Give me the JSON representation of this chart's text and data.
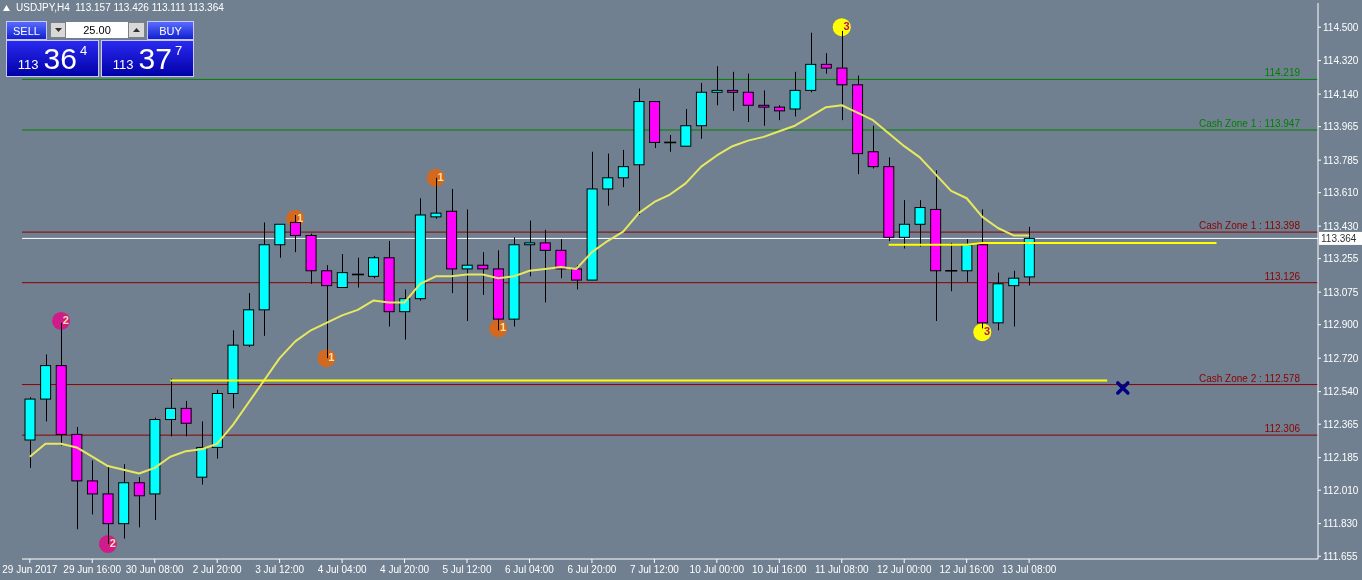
{
  "chart_data": {
    "type": "candlestick",
    "title": "USDJPY,H4  113.157 113.426 113.111 113.364",
    "categories": [
      "29 Jun 2017",
      null,
      null,
      null,
      "29 Jun 16:00",
      null,
      null,
      null,
      "30 Jun 08:00",
      null,
      null,
      null,
      "2 Jul 20:00",
      null,
      null,
      null,
      "3 Jul 12:00",
      null,
      null,
      null,
      "4 Jul 04:00",
      null,
      null,
      null,
      "4 Jul 20:00",
      null,
      null,
      null,
      "5 Jul 12:00",
      null,
      null,
      null,
      "6 Jul 04:00",
      null,
      null,
      null,
      "6 Jul 20:00",
      null,
      null,
      null,
      "7 Jul 12:00",
      null,
      null,
      null,
      "10 Jul 00:00",
      null,
      null,
      null,
      "10 Jul 16:00",
      null,
      null,
      null,
      "11 Jul 08:00",
      null,
      null,
      null,
      "12 Jul 00:00",
      null,
      null,
      null,
      "12 Jul 16:00",
      null,
      null,
      null,
      "13 Jul 08:00",
      null,
      null,
      null,
      null,
      null,
      null,
      null,
      null,
      null,
      null,
      null,
      null,
      null,
      null,
      null,
      null,
      null,
      null
    ],
    "ohlc": [
      [
        112.28,
        112.51,
        112.13,
        112.5
      ],
      [
        112.5,
        112.74,
        112.38,
        112.68
      ],
      [
        112.68,
        112.91,
        112.25,
        112.31
      ],
      [
        112.31,
        112.35,
        111.8,
        112.06
      ],
      [
        112.06,
        112.17,
        111.88,
        111.99
      ],
      [
        111.99,
        112.14,
        111.72,
        111.83
      ],
      [
        111.83,
        112.15,
        111.75,
        112.05
      ],
      [
        112.05,
        112.08,
        111.81,
        111.98
      ],
      [
        111.99,
        112.4,
        111.85,
        112.39
      ],
      [
        112.39,
        112.61,
        112.3,
        112.45
      ],
      [
        112.45,
        112.49,
        112.3,
        112.37
      ],
      [
        112.08,
        112.38,
        112.04,
        112.24
      ],
      [
        112.24,
        112.55,
        112.18,
        112.53
      ],
      [
        112.53,
        112.87,
        112.45,
        112.79
      ],
      [
        112.79,
        113.07,
        112.78,
        112.98
      ],
      [
        112.98,
        113.45,
        112.84,
        113.33
      ],
      [
        113.33,
        113.44,
        113.26,
        113.44
      ],
      [
        113.45,
        113.49,
        113.29,
        113.38
      ],
      [
        113.38,
        113.39,
        113.12,
        113.19
      ],
      [
        113.19,
        113.22,
        112.72,
        113.11
      ],
      [
        113.1,
        113.28,
        113.1,
        113.18
      ],
      [
        113.17,
        113.26,
        113.1,
        113.17
      ],
      [
        113.16,
        113.27,
        113.15,
        113.26
      ],
      [
        113.26,
        113.35,
        112.89,
        112.97
      ],
      [
        112.97,
        113.09,
        112.82,
        113.04
      ],
      [
        113.04,
        113.58,
        113.03,
        113.49
      ],
      [
        113.48,
        113.69,
        113.47,
        113.5
      ],
      [
        113.51,
        113.63,
        113.07,
        113.2
      ],
      [
        113.2,
        113.52,
        112.92,
        113.22
      ],
      [
        113.22,
        113.29,
        113.06,
        113.2
      ],
      [
        113.2,
        113.3,
        112.87,
        112.93
      ],
      [
        112.93,
        113.37,
        112.89,
        113.33
      ],
      [
        113.33,
        113.46,
        113.16,
        113.34
      ],
      [
        113.34,
        113.41,
        113.02,
        113.3
      ],
      [
        113.3,
        113.36,
        113.15,
        113.2
      ],
      [
        113.2,
        113.22,
        113.09,
        113.14
      ],
      [
        113.14,
        113.83,
        113.14,
        113.63
      ],
      [
        113.63,
        113.82,
        113.54,
        113.69
      ],
      [
        113.69,
        113.84,
        113.64,
        113.75
      ],
      [
        113.76,
        114.17,
        113.49,
        114.1
      ],
      [
        114.1,
        114.1,
        113.85,
        113.88
      ],
      [
        113.88,
        113.92,
        113.83,
        113.88
      ],
      [
        113.86,
        114.06,
        113.86,
        113.97
      ],
      [
        113.97,
        114.2,
        113.9,
        114.15
      ],
      [
        114.15,
        114.29,
        114.08,
        114.16
      ],
      [
        114.16,
        114.26,
        114.05,
        114.15
      ],
      [
        114.15,
        114.25,
        113.99,
        114.08
      ],
      [
        114.08,
        114.16,
        113.97,
        114.07
      ],
      [
        114.07,
        114.08,
        114.0,
        114.05
      ],
      [
        114.06,
        114.26,
        114.02,
        114.16
      ],
      [
        114.16,
        114.47,
        114.15,
        114.3
      ],
      [
        114.3,
        114.36,
        114.25,
        114.28
      ],
      [
        114.28,
        114.48,
        114.0,
        114.19
      ],
      [
        114.19,
        114.24,
        113.71,
        113.82
      ],
      [
        113.83,
        113.97,
        113.74,
        113.75
      ],
      [
        113.75,
        113.8,
        113.35,
        113.37
      ],
      [
        113.37,
        113.57,
        113.31,
        113.44
      ],
      [
        113.44,
        113.57,
        113.32,
        113.53
      ],
      [
        113.52,
        113.73,
        112.92,
        113.19
      ],
      [
        113.19,
        113.34,
        113.08,
        113.19
      ],
      [
        113.19,
        113.36,
        113.13,
        113.33
      ],
      [
        113.33,
        113.52,
        112.88,
        112.91
      ],
      [
        112.91,
        113.18,
        112.87,
        113.12
      ],
      [
        113.11,
        113.19,
        112.89,
        113.15
      ],
      [
        113.157,
        113.426,
        113.111,
        113.364
      ],
      null,
      null,
      null,
      null,
      null,
      null,
      null,
      null,
      null,
      null,
      null,
      null,
      null,
      null,
      null,
      null,
      null,
      null
    ],
    "colors": [
      "#00ffff",
      "#00ffff",
      "#ff00ff",
      "#ff00ff",
      "#ff00ff",
      "#ff00ff",
      "#00ffff",
      "#ff00ff",
      "#00ffff",
      "#00ffff",
      "#ff00ff",
      "#00ffff",
      "#00ffff",
      "#00ffff",
      "#00ffff",
      "#00ffff",
      "#00ffff",
      "#ff00ff",
      "#ff00ff",
      "#ff00ff",
      "#00ffff",
      "#000000",
      "#00ffff",
      "#ff00ff",
      "#00ffff",
      "#00ffff",
      "#00ffff",
      "#ff00ff",
      "#00ffff",
      "#ff00ff",
      "#ff00ff",
      "#00ffff",
      "#00ffff",
      "#ff00ff",
      "#ff00ff",
      "#ff00ff",
      "#00ffff",
      "#00ffff",
      "#00ffff",
      "#00ffff",
      "#ff00ff",
      "#000000",
      "#00ffff",
      "#00ffff",
      "#00ffff",
      "#ff00ff",
      "#ff00ff",
      "#ff00ff",
      "#ff00ff",
      "#00ffff",
      "#00ffff",
      "#ff00ff",
      "#ff00ff",
      "#ff00ff",
      "#ff00ff",
      "#ff00ff",
      "#00ffff",
      "#00ffff",
      "#ff00ff",
      "#000000",
      "#00ffff",
      "#ff00ff",
      "#00ffff",
      "#00ffff",
      "#00ffff",
      null,
      null,
      null,
      null,
      null,
      null,
      null,
      null,
      null,
      null,
      null,
      null,
      null,
      null,
      null,
      null,
      null,
      null
    ],
    "series": [
      {
        "type": "line",
        "color": "#e8e860",
        "values": [
          112.19,
          112.26,
          112.26,
          112.24,
          112.19,
          112.14,
          112.12,
          112.1,
          112.13,
          112.19,
          112.22,
          112.23,
          112.26,
          112.36,
          112.48,
          112.6,
          112.72,
          112.81,
          112.87,
          112.91,
          112.95,
          112.98,
          113.03,
          113.02,
          113.02,
          113.12,
          113.16,
          113.16,
          113.17,
          113.17,
          113.15,
          113.16,
          113.19,
          113.2,
          113.21,
          113.2,
          113.29,
          113.35,
          113.4,
          113.5,
          113.56,
          113.6,
          113.66,
          113.75,
          113.81,
          113.86,
          113.89,
          113.91,
          113.94,
          113.97,
          114.02,
          114.07,
          114.08,
          114.04,
          114.0,
          113.93,
          113.86,
          113.8,
          113.71,
          113.62,
          113.58,
          113.48,
          113.42,
          113.38,
          113.38,
          null,
          null,
          null,
          null,
          null,
          null,
          null,
          null,
          null,
          null,
          null,
          null,
          null,
          null,
          null,
          null,
          null,
          null
        ]
      },
      {
        "type": "line",
        "color": "#ffff00",
        "values": [
          null,
          null,
          null,
          null,
          null,
          null,
          null,
          null,
          null,
          112.6,
          112.6,
          112.6,
          112.6,
          112.6,
          112.6,
          112.6,
          112.6,
          112.6,
          112.6,
          112.6,
          112.6,
          112.6,
          112.6,
          112.6,
          112.6,
          112.6,
          112.6,
          112.6,
          112.6,
          112.6,
          112.6,
          112.6,
          112.6,
          112.6,
          112.6,
          112.6,
          112.6,
          112.6,
          112.6,
          112.6,
          112.6,
          112.6,
          112.6,
          112.6,
          112.6,
          112.6,
          112.6,
          112.6,
          112.6,
          112.6,
          112.6,
          112.6,
          112.6,
          112.6,
          112.6,
          112.6,
          112.6,
          112.6,
          112.6,
          112.6,
          112.6,
          112.6,
          112.6,
          112.6,
          112.6,
          112.6,
          112.6,
          112.6,
          112.6,
          112.6,
          null,
          null,
          null,
          null,
          null,
          null,
          null,
          null,
          null,
          null,
          null,
          null,
          null
        ]
      },
      {
        "type": "line",
        "color": "#ffff00",
        "values": [
          null,
          null,
          null,
          null,
          null,
          null,
          null,
          null,
          null,
          null,
          null,
          null,
          null,
          null,
          null,
          null,
          null,
          null,
          null,
          null,
          null,
          null,
          null,
          null,
          null,
          null,
          null,
          null,
          null,
          null,
          null,
          null,
          null,
          null,
          null,
          null,
          null,
          null,
          null,
          null,
          null,
          null,
          null,
          null,
          null,
          null,
          null,
          null,
          null,
          null,
          null,
          null,
          null,
          null,
          null,
          113.33,
          113.33,
          113.33,
          113.33,
          113.33,
          113.33,
          113.34,
          113.34,
          113.34,
          113.34,
          113.34,
          113.34,
          113.34,
          113.34,
          113.34,
          113.34,
          113.34,
          113.34,
          113.34,
          113.34,
          113.34,
          113.34,
          null,
          null,
          null,
          null,
          null,
          null
        ]
      },
      {
        "type": "scatter",
        "name": "2",
        "color": "#d01c8b",
        "marker": "circle",
        "values": [
          null,
          null,
          112.92,
          null,
          null,
          111.72,
          null,
          null,
          null,
          null,
          null,
          null,
          null,
          null,
          null,
          null,
          null,
          null,
          null,
          null,
          null,
          null,
          null,
          null,
          null,
          null,
          null,
          null,
          null,
          null,
          null,
          null,
          null,
          null,
          null,
          null,
          null,
          null,
          null,
          null,
          null,
          null,
          null,
          null,
          null,
          null,
          null,
          null,
          null,
          null,
          null,
          null,
          null,
          null,
          null,
          null,
          null,
          null,
          null,
          null,
          null,
          null,
          null,
          null,
          null,
          null,
          null,
          null,
          null,
          null,
          null,
          null,
          null,
          null,
          null,
          null,
          null,
          null,
          null,
          null,
          null,
          null,
          null
        ]
      },
      {
        "type": "scatter",
        "name": "1",
        "color": "#d2691e",
        "marker": "circle",
        "values": [
          null,
          null,
          null,
          null,
          null,
          null,
          null,
          null,
          null,
          null,
          null,
          null,
          null,
          null,
          null,
          null,
          null,
          113.47,
          null,
          112.72,
          null,
          null,
          null,
          null,
          null,
          null,
          113.69,
          null,
          null,
          null,
          112.88,
          null,
          null,
          null,
          null,
          null,
          null,
          null,
          null,
          null,
          null,
          null,
          null,
          null,
          null,
          null,
          null,
          null,
          null,
          null,
          null,
          null,
          null,
          null,
          null,
          null,
          null,
          null,
          null,
          null,
          null,
          null,
          null,
          null,
          null,
          null,
          null,
          null,
          null,
          null,
          null,
          null,
          null,
          null,
          null,
          null,
          null,
          null,
          null,
          null,
          null,
          null,
          null
        ]
      },
      {
        "type": "scatter",
        "name": "3",
        "color": "#ffff00",
        "marker": "circle",
        "values": [
          null,
          null,
          null,
          null,
          null,
          null,
          null,
          null,
          null,
          null,
          null,
          null,
          null,
          null,
          null,
          null,
          null,
          null,
          null,
          null,
          null,
          null,
          null,
          null,
          null,
          null,
          null,
          null,
          null,
          null,
          null,
          null,
          null,
          null,
          null,
          null,
          null,
          null,
          null,
          null,
          null,
          null,
          null,
          null,
          null,
          null,
          null,
          null,
          null,
          null,
          null,
          null,
          114.5,
          null,
          null,
          null,
          null,
          null,
          null,
          null,
          null,
          112.86,
          null,
          null,
          null,
          null,
          null,
          null,
          null,
          null,
          null,
          null,
          null,
          null,
          null,
          null,
          null,
          null,
          null,
          null,
          null,
          null,
          null
        ]
      },
      {
        "type": "scatter",
        "color": "#000080",
        "marker": "cross",
        "values": [
          null,
          null,
          null,
          null,
          null,
          null,
          null,
          null,
          null,
          null,
          null,
          null,
          null,
          null,
          null,
          null,
          null,
          null,
          null,
          null,
          null,
          null,
          null,
          null,
          null,
          null,
          null,
          null,
          null,
          null,
          null,
          null,
          null,
          null,
          null,
          null,
          null,
          null,
          null,
          null,
          null,
          null,
          null,
          null,
          null,
          null,
          null,
          null,
          null,
          null,
          null,
          null,
          null,
          null,
          null,
          null,
          null,
          null,
          null,
          null,
          null,
          null,
          null,
          null,
          null,
          null,
          null,
          null,
          null,
          null,
          112.56,
          null,
          null,
          null,
          null,
          null,
          null,
          null,
          null,
          null,
          null,
          null,
          null
        ]
      }
    ],
    "ylim": [
      111.64,
      114.63
    ],
    "yticks": [
      {
        "value": 114.5,
        "label": "114.500"
      },
      {
        "value": 114.32,
        "label": "114.320"
      },
      {
        "value": 114.14,
        "label": "114.140"
      },
      {
        "value": 113.965,
        "label": "113.965"
      },
      {
        "value": 113.785,
        "label": "113.785"
      },
      {
        "value": 113.61,
        "label": "113.610"
      },
      {
        "value": 113.43,
        "label": "113.430"
      },
      {
        "value": 113.255,
        "label": "113.255"
      },
      {
        "value": 113.075,
        "label": "113.075"
      },
      {
        "value": 112.9,
        "label": "112.900"
      },
      {
        "value": 112.72,
        "label": "112.720"
      },
      {
        "value": 112.54,
        "label": "112.540"
      },
      {
        "value": 112.365,
        "label": "112.365"
      },
      {
        "value": 112.185,
        "label": "112.185"
      },
      {
        "value": 112.01,
        "label": "112.010"
      },
      {
        "value": 111.83,
        "label": "111.830"
      },
      {
        "value": 111.655,
        "label": "111.655"
      }
    ],
    "ref_lines": [
      {
        "axis": "y",
        "value": 114.219,
        "label": "114.219",
        "color": "#008000"
      },
      {
        "axis": "y",
        "value": 113.947,
        "label": "Cash Zone 1 : 113.947",
        "color": "#008000"
      },
      {
        "axis": "y",
        "value": 113.398,
        "label": "Cash Zone 1 : 113.398",
        "color": "#8b0000"
      },
      {
        "axis": "y",
        "value": 113.364,
        "label": "113.364",
        "color": "#ffffff"
      },
      {
        "axis": "y",
        "value": 113.126,
        "label": "113.126",
        "color": "#8b0000"
      },
      {
        "axis": "y",
        "value": 112.578,
        "label": "Cash Zone 2 : 112.578",
        "color": "#8b0000"
      },
      {
        "axis": "y",
        "value": 112.306,
        "label": "112.306",
        "color": "#8b0000"
      }
    ],
    "annotations": [
      "SELL",
      "25.00",
      "BUY",
      "113 36$^{4}$",
      "113 37$^{7}$"
    ]
  }
}
